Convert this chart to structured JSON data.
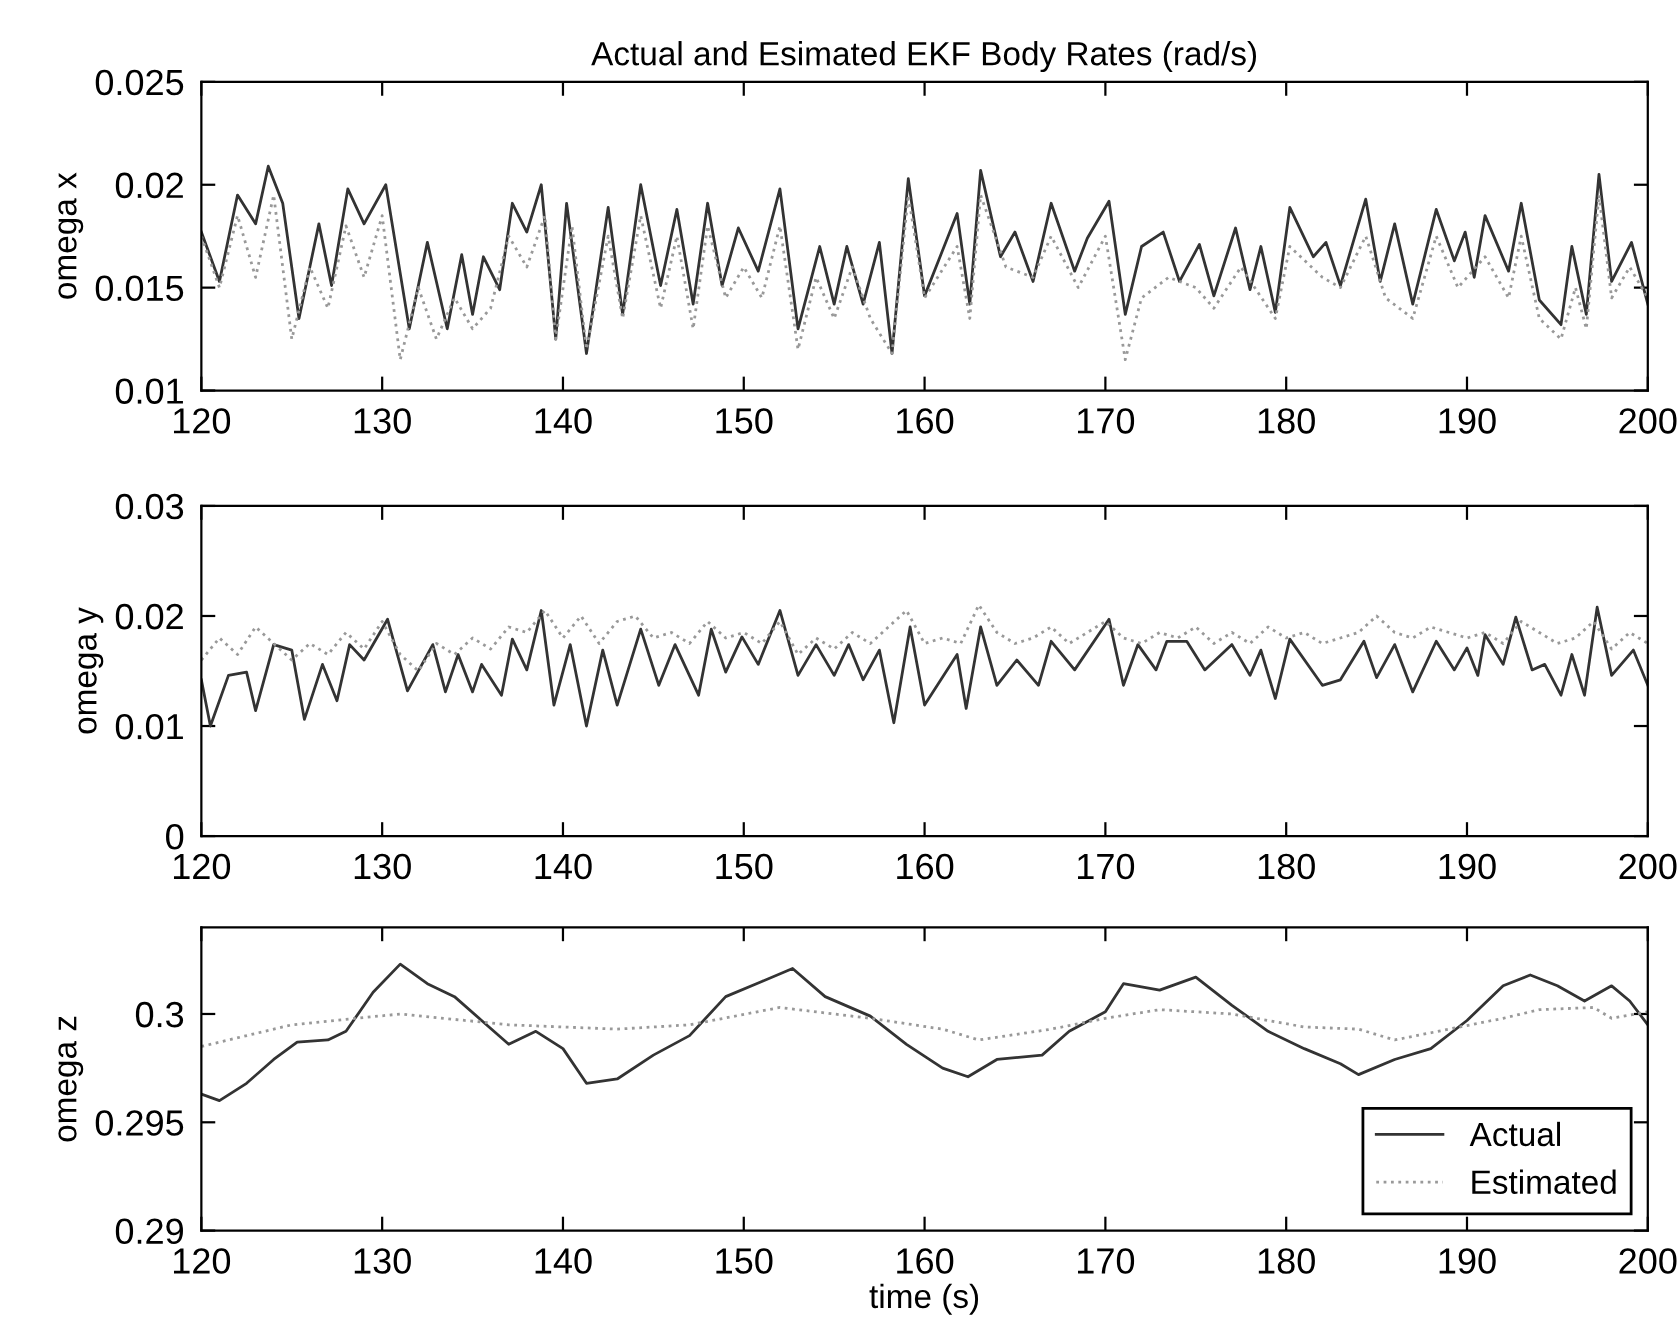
{
  "chart_data": [
    {
      "type": "line",
      "title": "Actual and Esimated EKF Body Rates (rad/s)",
      "ylabel": "omega x",
      "xlim": [
        120,
        200
      ],
      "xticks": [
        120,
        130,
        140,
        150,
        160,
        170,
        180,
        190,
        200
      ],
      "ylim": [
        0.01,
        0.025
      ],
      "yticks": [
        0.01,
        0.015,
        0.02,
        0.025
      ],
      "grid": false,
      "legend": false,
      "marker": "none",
      "series": [
        {
          "color": "#333333",
          "line_style": "solid",
          "x": [
            120,
            121,
            122,
            123,
            123.7,
            124.5,
            125.4,
            126.5,
            127.2,
            128.1,
            129,
            130.2,
            131.5,
            132.5,
            133.6,
            134.4,
            135,
            135.6,
            136.5,
            137.2,
            138,
            138.8,
            139.6,
            140.2,
            141.3,
            142.5,
            143.3,
            144.3,
            145.4,
            146.3,
            147.2,
            148,
            148.8,
            149.7,
            150.8,
            152,
            153,
            154.2,
            155,
            155.7,
            156.6,
            157.5,
            158.2,
            159.1,
            160,
            161.8,
            162.5,
            163.1,
            164.2,
            165,
            166,
            167,
            168.3,
            169,
            170.2,
            171.1,
            172,
            173.2,
            174.1,
            175.2,
            176,
            177.2,
            178,
            178.6,
            179.4,
            180.2,
            181.5,
            182.2,
            183,
            184.4,
            185.2,
            186,
            187,
            188.3,
            189.3,
            189.9,
            190.4,
            191,
            192.3,
            193,
            194,
            195.2,
            195.8,
            196.6,
            197.3,
            198,
            199.1,
            200
          ],
          "values": [
            0.0177,
            0.0153,
            0.0195,
            0.0181,
            0.0209,
            0.0191,
            0.0135,
            0.0181,
            0.0151,
            0.0198,
            0.0181,
            0.02,
            0.013,
            0.0172,
            0.013,
            0.0166,
            0.0137,
            0.0165,
            0.0149,
            0.0191,
            0.0177,
            0.02,
            0.0125,
            0.0191,
            0.0118,
            0.0189,
            0.0137,
            0.02,
            0.0151,
            0.0188,
            0.0142,
            0.0191,
            0.0151,
            0.0179,
            0.0158,
            0.0198,
            0.013,
            0.017,
            0.0142,
            0.017,
            0.0142,
            0.0172,
            0.0118,
            0.0203,
            0.0146,
            0.0186,
            0.0142,
            0.0207,
            0.0165,
            0.0177,
            0.0153,
            0.0191,
            0.0158,
            0.0174,
            0.0192,
            0.0137,
            0.017,
            0.0177,
            0.0153,
            0.0171,
            0.0146,
            0.0179,
            0.0149,
            0.017,
            0.0138,
            0.0189,
            0.0165,
            0.0172,
            0.0151,
            0.0193,
            0.0153,
            0.0181,
            0.0142,
            0.0188,
            0.0163,
            0.0177,
            0.0155,
            0.0185,
            0.0158,
            0.0191,
            0.0144,
            0.0132,
            0.017,
            0.0137,
            0.0205,
            0.0153,
            0.0172,
            0.0142
          ]
        },
        {
          "color": "#999999",
          "line_style": "dotted",
          "x": [
            120,
            121,
            122,
            123,
            124,
            125,
            126,
            127,
            128,
            129,
            130,
            131,
            132,
            133,
            134,
            135,
            136,
            137,
            138,
            139,
            139.6,
            140.5,
            141.3,
            142.5,
            143.3,
            144.3,
            145.4,
            146.3,
            147.2,
            148,
            149,
            150,
            151,
            152,
            153,
            154,
            155,
            156,
            157,
            158.2,
            159.1,
            160,
            161.8,
            162.5,
            163.1,
            164.5,
            166,
            167,
            168.5,
            170,
            171.1,
            172,
            173.5,
            175,
            176,
            177.5,
            179.4,
            180.2,
            182,
            183,
            184.4,
            185.5,
            187,
            188.3,
            189.5,
            191,
            192.3,
            193,
            194,
            195.2,
            196,
            196.6,
            197.3,
            198,
            199,
            200
          ],
          "values": [
            0.0175,
            0.015,
            0.0185,
            0.0155,
            0.0195,
            0.0125,
            0.016,
            0.014,
            0.018,
            0.0155,
            0.0185,
            0.0115,
            0.015,
            0.0125,
            0.0145,
            0.013,
            0.014,
            0.0175,
            0.016,
            0.0185,
            0.0125,
            0.018,
            0.012,
            0.0175,
            0.0135,
            0.0185,
            0.014,
            0.0175,
            0.013,
            0.018,
            0.0145,
            0.016,
            0.0145,
            0.018,
            0.012,
            0.0155,
            0.0135,
            0.016,
            0.0135,
            0.0118,
            0.0195,
            0.0145,
            0.017,
            0.0135,
            0.0195,
            0.016,
            0.0155,
            0.0175,
            0.015,
            0.0175,
            0.0115,
            0.0145,
            0.0155,
            0.015,
            0.014,
            0.016,
            0.0135,
            0.017,
            0.0155,
            0.015,
            0.0175,
            0.0145,
            0.0135,
            0.0175,
            0.015,
            0.0165,
            0.0145,
            0.0175,
            0.0135,
            0.0125,
            0.015,
            0.013,
            0.0195,
            0.0145,
            0.016,
            0.0145
          ]
        }
      ]
    },
    {
      "type": "line",
      "ylabel": "omega y",
      "xlim": [
        120,
        200
      ],
      "xticks": [
        120,
        130,
        140,
        150,
        160,
        170,
        180,
        190,
        200
      ],
      "ylim": [
        0,
        0.03
      ],
      "yticks": [
        0,
        0.01,
        0.02,
        0.03
      ],
      "grid": false,
      "legend": false,
      "marker": "none",
      "series": [
        {
          "color": "#333333",
          "line_style": "solid",
          "x": [
            120,
            120.5,
            121.5,
            122.5,
            123,
            124,
            125,
            125.7,
            126.7,
            127.5,
            128.2,
            129,
            130.3,
            131.4,
            132.8,
            133.5,
            134.2,
            135,
            135.5,
            136.6,
            137.2,
            138,
            138.8,
            139.5,
            140.4,
            141.3,
            142.2,
            143,
            144.3,
            145.3,
            146.2,
            147.5,
            148.2,
            149,
            149.9,
            150.8,
            152,
            153,
            154,
            155,
            155.8,
            156.6,
            157.5,
            158.3,
            159.2,
            160,
            161.8,
            162.3,
            163.1,
            164,
            165.1,
            166.3,
            167,
            168.3,
            170.2,
            171,
            171.8,
            172.8,
            173.4,
            174.5,
            175.5,
            177,
            178,
            178.6,
            179.4,
            180.2,
            182,
            183,
            184.3,
            185,
            186,
            187,
            188.3,
            189.3,
            190,
            190.6,
            191,
            192,
            192.7,
            193.6,
            194.3,
            195.2,
            195.8,
            196.5,
            197.2,
            198,
            199.2,
            200
          ],
          "values": [
            0.0142,
            0.01,
            0.0146,
            0.0149,
            0.0114,
            0.0174,
            0.0169,
            0.0106,
            0.0156,
            0.0123,
            0.0174,
            0.016,
            0.0197,
            0.0132,
            0.0174,
            0.0131,
            0.0165,
            0.0131,
            0.0156,
            0.0128,
            0.0179,
            0.0151,
            0.0205,
            0.0119,
            0.0174,
            0.01,
            0.0169,
            0.0119,
            0.0188,
            0.0137,
            0.0174,
            0.0128,
            0.0188,
            0.0149,
            0.0181,
            0.0156,
            0.0205,
            0.0146,
            0.0174,
            0.0146,
            0.0174,
            0.0142,
            0.0169,
            0.0103,
            0.019,
            0.0119,
            0.0165,
            0.0116,
            0.019,
            0.0137,
            0.016,
            0.0137,
            0.0177,
            0.0151,
            0.0197,
            0.0137,
            0.0174,
            0.0151,
            0.0177,
            0.0177,
            0.0151,
            0.0174,
            0.0146,
            0.0169,
            0.0125,
            0.0179,
            0.0137,
            0.0142,
            0.0177,
            0.0144,
            0.0174,
            0.0131,
            0.0177,
            0.0151,
            0.0171,
            0.0146,
            0.0183,
            0.0156,
            0.0199,
            0.0151,
            0.0156,
            0.0128,
            0.0165,
            0.0128,
            0.0208,
            0.0146,
            0.0169,
            0.0137
          ]
        },
        {
          "color": "#999999",
          "line_style": "dotted",
          "x": [
            120,
            121,
            122,
            123,
            124,
            125,
            126,
            127,
            128,
            129,
            130,
            131,
            132,
            133,
            134,
            135,
            136,
            137,
            138,
            139,
            140,
            141,
            142,
            143,
            144,
            145,
            146,
            147,
            148,
            149,
            150,
            151,
            152,
            153,
            154,
            155,
            156,
            157,
            158,
            159,
            160,
            161,
            162,
            163,
            164,
            165,
            166,
            167,
            168,
            169,
            170,
            171,
            172,
            173,
            174,
            175,
            176,
            177,
            178,
            179,
            180,
            181,
            182,
            183,
            184,
            185,
            186,
            187,
            188,
            189,
            190,
            191,
            192,
            193,
            194,
            195,
            196,
            197,
            198,
            199,
            200
          ],
          "values": [
            0.016,
            0.018,
            0.0165,
            0.019,
            0.0175,
            0.016,
            0.0175,
            0.0165,
            0.0185,
            0.017,
            0.0195,
            0.0165,
            0.015,
            0.0175,
            0.0165,
            0.018,
            0.017,
            0.019,
            0.0185,
            0.0205,
            0.018,
            0.02,
            0.0175,
            0.0195,
            0.02,
            0.018,
            0.0185,
            0.0175,
            0.0195,
            0.018,
            0.0185,
            0.0175,
            0.0195,
            0.0165,
            0.018,
            0.017,
            0.0185,
            0.0175,
            0.019,
            0.0205,
            0.0175,
            0.018,
            0.0175,
            0.021,
            0.0185,
            0.0175,
            0.018,
            0.019,
            0.0175,
            0.0185,
            0.0195,
            0.018,
            0.0175,
            0.0185,
            0.018,
            0.019,
            0.0175,
            0.0185,
            0.0175,
            0.019,
            0.018,
            0.0185,
            0.0175,
            0.018,
            0.0185,
            0.02,
            0.0185,
            0.018,
            0.019,
            0.0185,
            0.018,
            0.0185,
            0.0175,
            0.0195,
            0.0185,
            0.0175,
            0.018,
            0.0195,
            0.017,
            0.0185,
            0.0175
          ]
        }
      ]
    },
    {
      "type": "line",
      "xlabel": "time (s)",
      "ylabel": "omega z",
      "xlim": [
        120,
        200
      ],
      "xticks": [
        120,
        130,
        140,
        150,
        160,
        170,
        180,
        190,
        200
      ],
      "ylim": [
        0.29,
        0.304
      ],
      "yticks": [
        0.29,
        0.295,
        0.3
      ],
      "grid": false,
      "legend": "bottom right",
      "marker": "none",
      "series": [
        {
          "name": "Actual",
          "color": "#333333",
          "line_style": "solid",
          "x": [
            120,
            121,
            122.5,
            124,
            125.3,
            127,
            128,
            129.5,
            131,
            132.5,
            134,
            135.5,
            137,
            138.5,
            140,
            141.3,
            143,
            145,
            147,
            149,
            151,
            152.7,
            154.5,
            157,
            159,
            161,
            162.4,
            164,
            166.5,
            168,
            170,
            171,
            173,
            175,
            177,
            179,
            181,
            183,
            184,
            186,
            188,
            190,
            192,
            193.5,
            195,
            196.5,
            198,
            199,
            200
          ],
          "values": [
            0.2963,
            0.296,
            0.2968,
            0.2979,
            0.2987,
            0.2988,
            0.2992,
            0.301,
            0.3023,
            0.3014,
            0.3008,
            0.2997,
            0.2986,
            0.2992,
            0.2984,
            0.2968,
            0.297,
            0.2981,
            0.299,
            0.3008,
            0.3015,
            0.3021,
            0.3008,
            0.2999,
            0.2986,
            0.2975,
            0.2971,
            0.2979,
            0.2981,
            0.2992,
            0.3001,
            0.3014,
            0.3011,
            0.3017,
            0.3004,
            0.2992,
            0.2984,
            0.2977,
            0.2972,
            0.2979,
            0.2984,
            0.2997,
            0.3013,
            0.3018,
            0.3013,
            0.3006,
            0.3013,
            0.3006,
            0.2995
          ]
        },
        {
          "name": "Estimated",
          "color": "#999999",
          "line_style": "dotted",
          "x": [
            120,
            125,
            131,
            137,
            143,
            147,
            152,
            157,
            161,
            163,
            167,
            170,
            173,
            177,
            181,
            184,
            186,
            189,
            192,
            194,
            197,
            198,
            200
          ],
          "values": [
            0.2985,
            0.2995,
            0.3,
            0.2995,
            0.2993,
            0.2995,
            0.3003,
            0.2998,
            0.2993,
            0.2988,
            0.2993,
            0.2998,
            0.3002,
            0.3,
            0.2994,
            0.2993,
            0.2988,
            0.2993,
            0.2998,
            0.3002,
            0.3003,
            0.2998,
            0.3001
          ]
        }
      ]
    }
  ]
}
